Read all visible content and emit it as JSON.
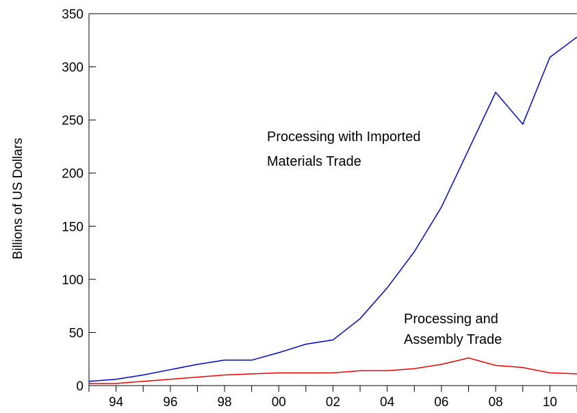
{
  "chart_data": {
    "type": "line",
    "ylabel": "Billions of US Dollars",
    "xlabel": "",
    "ylim": [
      0,
      350
    ],
    "xlim": [
      1993,
      2011
    ],
    "grid": false,
    "yticks": [
      0,
      50,
      100,
      150,
      200,
      250,
      300,
      350
    ],
    "xticks": [
      {
        "value": 1994,
        "label": "94"
      },
      {
        "value": 1996,
        "label": "96"
      },
      {
        "value": 1998,
        "label": "98"
      },
      {
        "value": 2000,
        "label": "00"
      },
      {
        "value": 2002,
        "label": "02"
      },
      {
        "value": 2004,
        "label": "04"
      },
      {
        "value": 2006,
        "label": "06"
      },
      {
        "value": 2008,
        "label": "08"
      },
      {
        "value": 2010,
        "label": "10"
      }
    ],
    "x": [
      1993,
      1994,
      1995,
      1996,
      1997,
      1998,
      1999,
      2000,
      2001,
      2002,
      2003,
      2004,
      2005,
      2006,
      2007,
      2008,
      2009,
      2010,
      2011
    ],
    "series": [
      {
        "color": "#0000dd",
        "values": [
          4,
          6,
          10,
          15,
          20,
          24,
          24,
          31,
          39,
          43,
          63,
          92,
          126,
          168,
          222,
          276,
          246,
          309,
          328
        ],
        "annotation": [
          "Processing with Imported",
          "Materials Trade"
        ]
      },
      {
        "color": "#ee0000",
        "values": [
          2,
          2,
          4,
          6,
          8,
          10,
          11,
          12,
          12,
          12,
          14,
          14,
          16,
          20,
          26,
          19,
          17,
          12,
          11
        ],
        "annotation": [
          "Processing and",
          "Assembly Trade"
        ]
      }
    ]
  }
}
